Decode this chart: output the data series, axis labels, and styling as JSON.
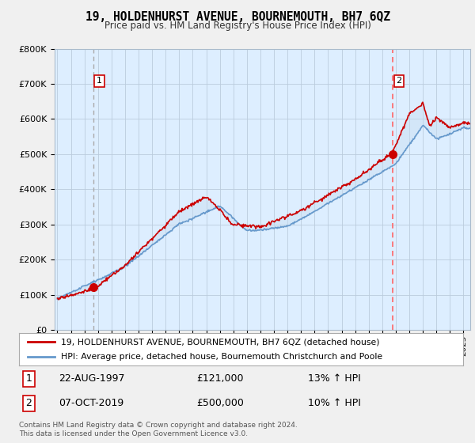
{
  "title": "19, HOLDENHURST AVENUE, BOURNEMOUTH, BH7 6QZ",
  "subtitle": "Price paid vs. HM Land Registry's House Price Index (HPI)",
  "ylim": [
    0,
    800000
  ],
  "xlim_start": 1994.8,
  "xlim_end": 2025.5,
  "purchase1_x": 1997.64,
  "purchase1_y": 121000,
  "purchase2_x": 2019.77,
  "purchase2_y": 500000,
  "purchase1_date": "22-AUG-1997",
  "purchase1_price": "£121,000",
  "purchase1_hpi": "13% ↑ HPI",
  "purchase2_date": "07-OCT-2019",
  "purchase2_price": "£500,000",
  "purchase2_hpi": "10% ↑ HPI",
  "line1_color": "#cc0000",
  "line2_color": "#6699cc",
  "fill_color": "#c8ddf0",
  "plot_bg_color": "#ddeeff",
  "dashed1_color": "#aaaaaa",
  "dashed2_color": "#ff6666",
  "background_color": "#f0f0f0",
  "grid_color": "#bbccdd",
  "legend_line1": "19, HOLDENHURST AVENUE, BOURNEMOUTH, BH7 6QZ (detached house)",
  "legend_line2": "HPI: Average price, detached house, Bournemouth Christchurch and Poole",
  "footer": "Contains HM Land Registry data © Crown copyright and database right 2024.\nThis data is licensed under the Open Government Licence v3.0.",
  "marker_color": "#cc0000",
  "marker_size": 7
}
